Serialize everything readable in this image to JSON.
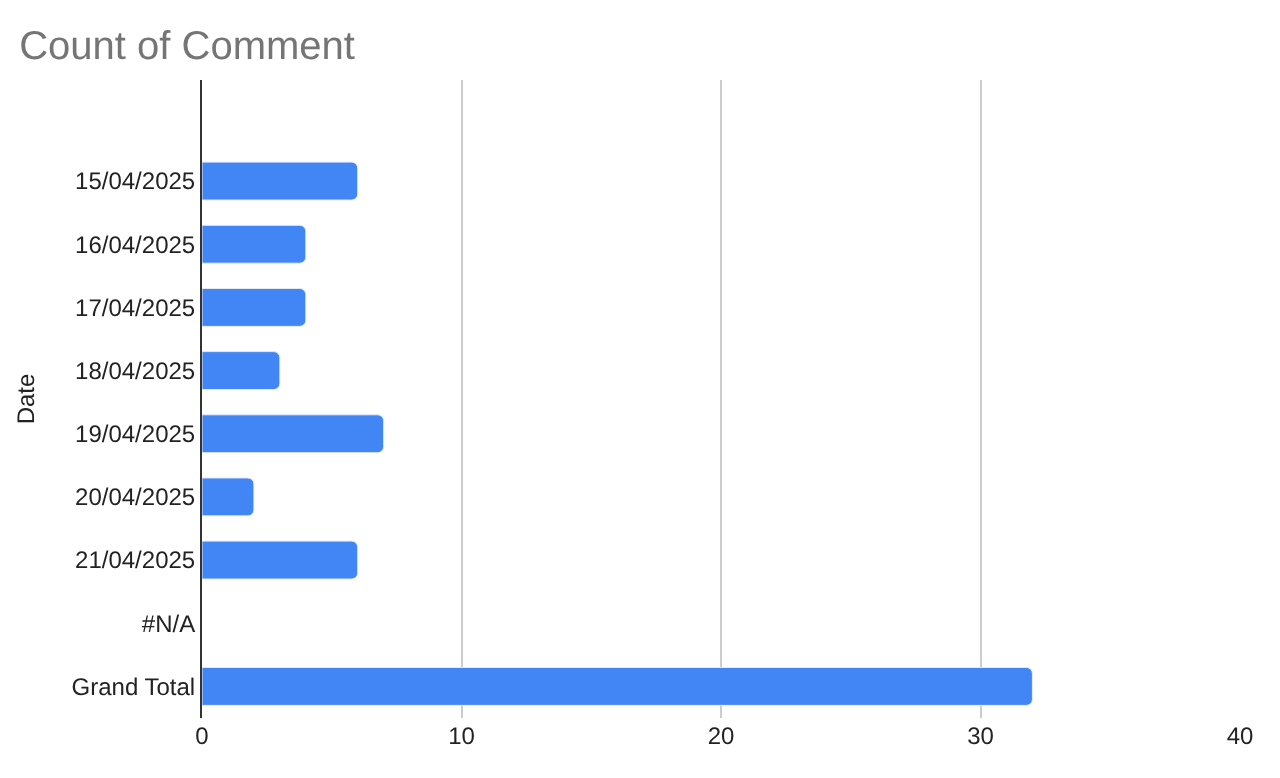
{
  "chart_data": {
    "type": "bar",
    "orientation": "horizontal",
    "title": "Count of Comment",
    "ylabel": "Date",
    "categories": [
      "15/04/2025",
      "16/04/2025",
      "17/04/2025",
      "18/04/2025",
      "19/04/2025",
      "20/04/2025",
      "21/04/2025",
      "#N/A",
      "Grand Total"
    ],
    "series": [
      {
        "color": "#4285f4",
        "values": [
          6,
          4,
          4,
          3,
          7,
          2,
          6,
          null,
          32
        ]
      }
    ],
    "xlim": [
      0,
      40
    ],
    "xticks": [
      0,
      10,
      20,
      30,
      40
    ],
    "grid": "x",
    "legend": false
  }
}
